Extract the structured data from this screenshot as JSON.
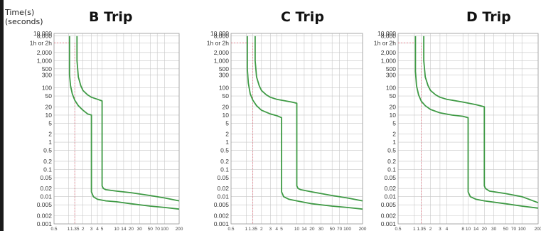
{
  "y_axis_title": [
    "Time(s)",
    "(seconds)"
  ],
  "chart_data": [
    {
      "type": "line",
      "title": "B Trip",
      "yscale": "log",
      "xscale": "log",
      "ylim": [
        0.001,
        10000
      ],
      "xlim": [
        0.5,
        200
      ],
      "yticks": [
        "10,000",
        "8,000",
        "1h or 2h",
        "2,000",
        "1,000",
        "500",
        "300",
        "100",
        "50",
        "20",
        "10",
        "5",
        "2",
        "1",
        "0.5",
        "0.2",
        "0.1",
        "0.05",
        "0.02",
        "0.01",
        "0.005",
        "0.002",
        "0.001"
      ],
      "ytick_values": [
        10000,
        8000,
        4500,
        2000,
        1000,
        500,
        300,
        100,
        50,
        20,
        10,
        5,
        2,
        1,
        0.5,
        0.2,
        0.1,
        0.05,
        0.02,
        0.01,
        0.005,
        0.002,
        0.001
      ],
      "xticks": [
        "0.5",
        "1",
        "1.35",
        "2",
        "3",
        "4",
        "5",
        "10",
        "14",
        "20",
        "30",
        "50",
        "70",
        "100",
        "200"
      ],
      "xtick_values": [
        0.5,
        1,
        1.35,
        2,
        3,
        4,
        5,
        10,
        14,
        20,
        30,
        50,
        70,
        100,
        200
      ],
      "reference": {
        "x": 1.35,
        "y": 4500
      },
      "series": [
        {
          "x": [
            1.05,
            1.05,
            1.1,
            1.2,
            1.35,
            1.6,
            2.0,
            2.5,
            3.0,
            3.0,
            3.0,
            3.3,
            4,
            6,
            10,
            20,
            50,
            100,
            200
          ],
          "y": [
            8000,
            300,
            120,
            60,
            35,
            22,
            15,
            11,
            10,
            2,
            0.015,
            0.01,
            0.008,
            0.007,
            0.0065,
            0.0055,
            0.0045,
            0.004,
            0.0035
          ]
        },
        {
          "x": [
            1.5,
            1.5,
            1.6,
            1.8,
            2.0,
            2.5,
            3.0,
            4.0,
            5.0,
            5.0,
            5.0,
            5.3,
            6,
            10,
            20,
            50,
            100,
            200
          ],
          "y": [
            8000,
            1000,
            250,
            120,
            80,
            55,
            45,
            38,
            33,
            5,
            0.025,
            0.02,
            0.018,
            0.016,
            0.014,
            0.011,
            0.009,
            0.007
          ]
        }
      ]
    },
    {
      "type": "line",
      "title": "C Trip",
      "yscale": "log",
      "xscale": "log",
      "ylim": [
        0.001,
        10000
      ],
      "xlim": [
        0.5,
        200
      ],
      "yticks": [
        "10,000",
        "8,000",
        "1h or 2h",
        "2,000",
        "1,000",
        "500",
        "300",
        "100",
        "50",
        "20",
        "10",
        "5",
        "2",
        "1",
        "0.5",
        "0.2",
        "0.1",
        "0.05",
        "0.02",
        "0.01",
        "0.005",
        "0.002",
        "0.001"
      ],
      "ytick_values": [
        10000,
        8000,
        4500,
        2000,
        1000,
        500,
        300,
        100,
        50,
        20,
        10,
        5,
        2,
        1,
        0.5,
        0.2,
        0.1,
        0.05,
        0.02,
        0.01,
        0.005,
        0.002,
        0.001
      ],
      "xticks": [
        "0.5",
        "1",
        "1.35",
        "2",
        "3",
        "4",
        "5",
        "10",
        "14",
        "20",
        "30",
        "50",
        "70",
        "100",
        "200"
      ],
      "xtick_values": [
        0.5,
        1,
        1.35,
        2,
        3,
        4,
        5,
        10,
        14,
        20,
        30,
        50,
        70,
        100,
        200
      ],
      "reference": {
        "x": 1.35,
        "y": 4500
      },
      "series": [
        {
          "x": [
            1.05,
            1.05,
            1.1,
            1.2,
            1.35,
            1.6,
            2.0,
            3.0,
            4.0,
            5.0,
            5.0,
            5.0,
            5.5,
            7,
            10,
            20,
            50,
            100,
            200
          ],
          "y": [
            8000,
            500,
            150,
            60,
            35,
            22,
            15,
            11,
            9.5,
            8,
            2,
            0.015,
            0.01,
            0.008,
            0.007,
            0.0055,
            0.0045,
            0.004,
            0.0035
          ]
        },
        {
          "x": [
            1.5,
            1.5,
            1.6,
            1.8,
            2.0,
            2.5,
            3.0,
            4.0,
            6.0,
            8.0,
            10,
            10,
            10,
            10.6,
            12,
            20,
            50,
            100,
            200
          ],
          "y": [
            8000,
            1000,
            250,
            120,
            80,
            55,
            45,
            38,
            33,
            30,
            27,
            5,
            0.025,
            0.02,
            0.018,
            0.015,
            0.011,
            0.009,
            0.007
          ]
        }
      ]
    },
    {
      "type": "line",
      "title": "D Trip",
      "yscale": "log",
      "xscale": "log",
      "ylim": [
        0.001,
        10000
      ],
      "xlim": [
        0.5,
        200
      ],
      "yticks": [
        "10,000",
        "8,000",
        "1h or 2h",
        "2,000",
        "1,000",
        "500",
        "300",
        "100",
        "50",
        "20",
        "10",
        "5",
        "2",
        "1",
        "0.5",
        "0.2",
        "0.1",
        "0.05",
        "0.02",
        "0.01",
        "0.005",
        "0.002",
        "0.001"
      ],
      "ytick_values": [
        10000,
        8000,
        4500,
        2000,
        1000,
        500,
        300,
        100,
        50,
        20,
        10,
        5,
        2,
        1,
        0.5,
        0.2,
        0.1,
        0.05,
        0.02,
        0.01,
        0.005,
        0.002,
        0.001
      ],
      "xticks": [
        "0.5",
        "1",
        "1.35",
        "2",
        "3",
        "4",
        "8",
        "10",
        "14",
        "20",
        "30",
        "50",
        "70",
        "100",
        "200"
      ],
      "xtick_values": [
        0.5,
        1,
        1.35,
        2,
        3,
        4,
        8,
        10,
        14,
        20,
        30,
        50,
        70,
        100,
        200
      ],
      "reference": {
        "x": 1.35,
        "y": 4500
      },
      "series": [
        {
          "x": [
            1.05,
            1.05,
            1.1,
            1.2,
            1.35,
            1.6,
            2.0,
            3.0,
            5.0,
            8.0,
            10,
            10,
            10,
            11,
            14,
            20,
            50,
            100,
            200
          ],
          "y": [
            8000,
            400,
            120,
            55,
            32,
            22,
            16,
            12,
            10,
            9,
            8,
            2,
            0.015,
            0.01,
            0.008,
            0.007,
            0.0055,
            0.0045,
            0.0038
          ]
        },
        {
          "x": [
            1.5,
            1.5,
            1.6,
            1.8,
            2.0,
            2.5,
            3.0,
            4.0,
            8.0,
            14,
            20,
            20,
            20,
            21,
            25,
            50,
            100,
            200
          ],
          "y": [
            8000,
            1000,
            250,
            120,
            80,
            55,
            45,
            38,
            30,
            24,
            20,
            5,
            0.025,
            0.02,
            0.016,
            0.013,
            0.01,
            0.006
          ]
        }
      ]
    }
  ]
}
